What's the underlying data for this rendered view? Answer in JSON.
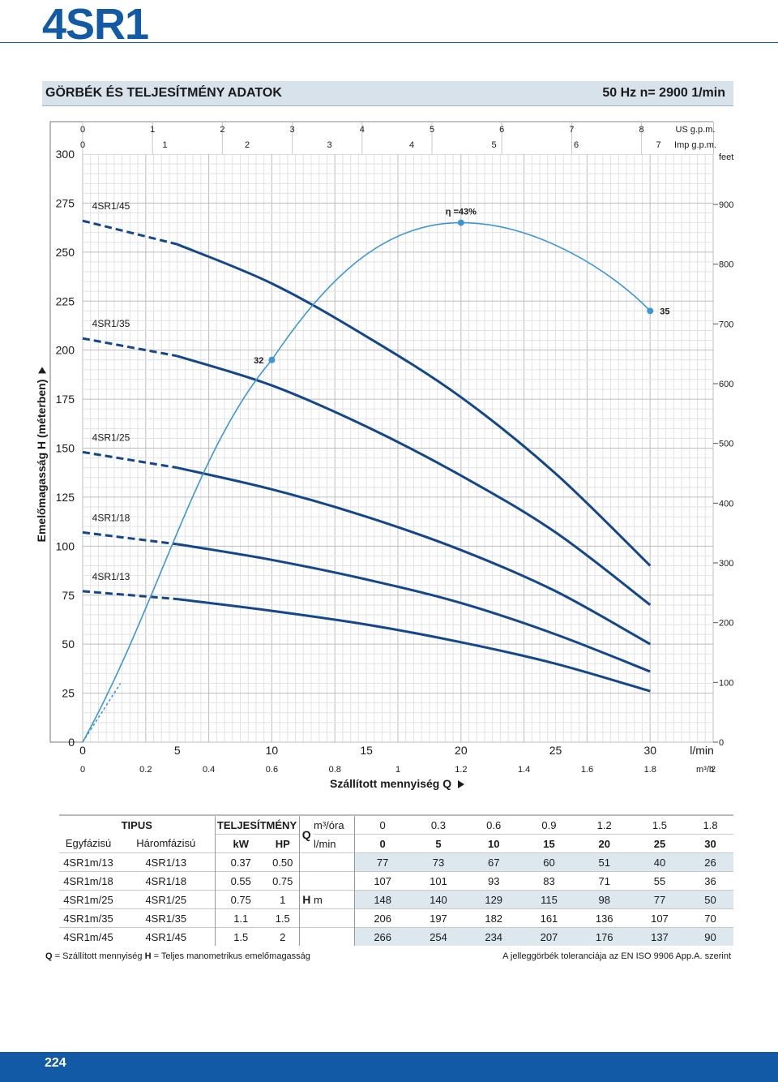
{
  "page": {
    "title": "4SR1",
    "number": "224"
  },
  "header": {
    "left": "GÖRBÉK ÉS TELJESÍTMÉNY ADATOK",
    "right": "50 Hz   n= 2900  1/min"
  },
  "chart_data": {
    "type": "line",
    "ylabel": "Emelőmagasság  H  (méterben)",
    "xlabel": "Szállított mennyiség  Q",
    "x_unit": "l/min",
    "x_unit2": "m³/h",
    "x_unit_us": "US g.p.m.",
    "x_unit_imp": "Imp g.p.m.",
    "y_unit_right": "feet",
    "xlim": [
      0,
      33.33
    ],
    "ylim": [
      0,
      300
    ],
    "x_ticks": [
      "0",
      "5",
      "10",
      "15",
      "20",
      "25",
      "30"
    ],
    "y_ticks": [
      "0",
      "25",
      "50",
      "75",
      "100",
      "125",
      "150",
      "175",
      "200",
      "225",
      "250",
      "275",
      "300"
    ],
    "m3h_ticks": [
      "0",
      "0.2",
      "0.4",
      "0.6",
      "0.8",
      "1",
      "1.2",
      "1.4",
      "1.6",
      "1.8",
      "2"
    ],
    "us_gpm_ticks": [
      "0",
      "1",
      "2",
      "3",
      "4",
      "5",
      "6",
      "7",
      "8"
    ],
    "imp_gpm_ticks": [
      "0",
      "1",
      "2",
      "3",
      "4",
      "5",
      "6",
      "7"
    ],
    "feet_ticks": [
      "0",
      "100",
      "200",
      "300",
      "400",
      "500",
      "600",
      "700",
      "800",
      "900"
    ],
    "series": [
      {
        "name": "4SR1/13",
        "label": "4SR1/13",
        "x": [
          0,
          5,
          10,
          15,
          20,
          25,
          30
        ],
        "y": [
          77,
          73,
          67,
          60,
          51,
          40,
          26
        ]
      },
      {
        "name": "4SR1/18",
        "label": "4SR1/18",
        "x": [
          0,
          5,
          10,
          15,
          20,
          25,
          30
        ],
        "y": [
          107,
          101,
          93,
          83,
          71,
          55,
          36
        ]
      },
      {
        "name": "4SR1/25",
        "label": "4SR1/25",
        "x": [
          0,
          5,
          10,
          15,
          20,
          25,
          30
        ],
        "y": [
          148,
          140,
          129,
          115,
          98,
          77,
          50
        ]
      },
      {
        "name": "4SR1/35",
        "label": "4SR1/35",
        "x": [
          0,
          5,
          10,
          15,
          20,
          25,
          30
        ],
        "y": [
          206,
          197,
          182,
          161,
          136,
          107,
          70
        ]
      },
      {
        "name": "4SR1/45",
        "label": "4SR1/45",
        "x": [
          0,
          5,
          10,
          15,
          20,
          25,
          30
        ],
        "y": [
          266,
          254,
          234,
          207,
          176,
          137,
          90
        ]
      }
    ],
    "efficiency_points": [
      {
        "label": "32",
        "x": 10,
        "y": 195
      },
      {
        "label": "η =43%",
        "x": 20,
        "y": 265
      },
      {
        "label": "35",
        "x": 30,
        "y": 220
      }
    ]
  },
  "table": {
    "head1": {
      "tipus": "TIPUS",
      "teljesitmeny": "TELJESÍTMÉNY",
      "unit1": "m³/óra",
      "q_values": [
        "0",
        "0.3",
        "0.6",
        "0.9",
        "1.2",
        "1.5",
        "1.8"
      ]
    },
    "head2": {
      "egyfazisu": "Egyfázisú",
      "haromfazisu": "Háromfázisú",
      "kw": "kW",
      "hp": "HP",
      "unit2": "l/min",
      "q_values": [
        "0",
        "5",
        "10",
        "15",
        "20",
        "25",
        "30"
      ]
    },
    "q_letter": "Q",
    "h_letter": "H",
    "h_unit": "m",
    "rows": [
      {
        "single": "4SR1m/13",
        "three": "4SR1/13",
        "kw": "0.37",
        "hp": "0.50",
        "h": [
          "77",
          "73",
          "67",
          "60",
          "51",
          "40",
          "26"
        ]
      },
      {
        "single": "4SR1m/18",
        "three": "4SR1/18",
        "kw": "0.55",
        "hp": "0.75",
        "h": [
          "107",
          "101",
          "93",
          "83",
          "71",
          "55",
          "36"
        ]
      },
      {
        "single": "4SR1m/25",
        "three": "4SR1/25",
        "kw": "0.75",
        "hp": "1",
        "h": [
          "148",
          "140",
          "129",
          "115",
          "98",
          "77",
          "50"
        ]
      },
      {
        "single": "4SR1m/35",
        "three": "4SR1/35",
        "kw": "1.1",
        "hp": "1.5",
        "h": [
          "206",
          "197",
          "182",
          "161",
          "136",
          "107",
          "70"
        ]
      },
      {
        "single": "4SR1m/45",
        "three": "4SR1/45",
        "kw": "1.5",
        "hp": "2",
        "h": [
          "266",
          "254",
          "234",
          "207",
          "176",
          "137",
          "90"
        ]
      }
    ]
  },
  "notes": {
    "q_letter": "Q",
    "q_text": " = Szállított mennyiség ",
    "h_letter": "H",
    "h_text": " = Teljes manometrikus emelőmagasság",
    "right": "A jelleggörbék toleranciája az EN ISO 9906 App.A. szerint"
  },
  "colors": {
    "brand": "#1259a6",
    "curve": "#14478a",
    "efficiency": "#3b96d4",
    "section_bg": "#d7e2ea",
    "table_shade": "#dde7ee"
  }
}
